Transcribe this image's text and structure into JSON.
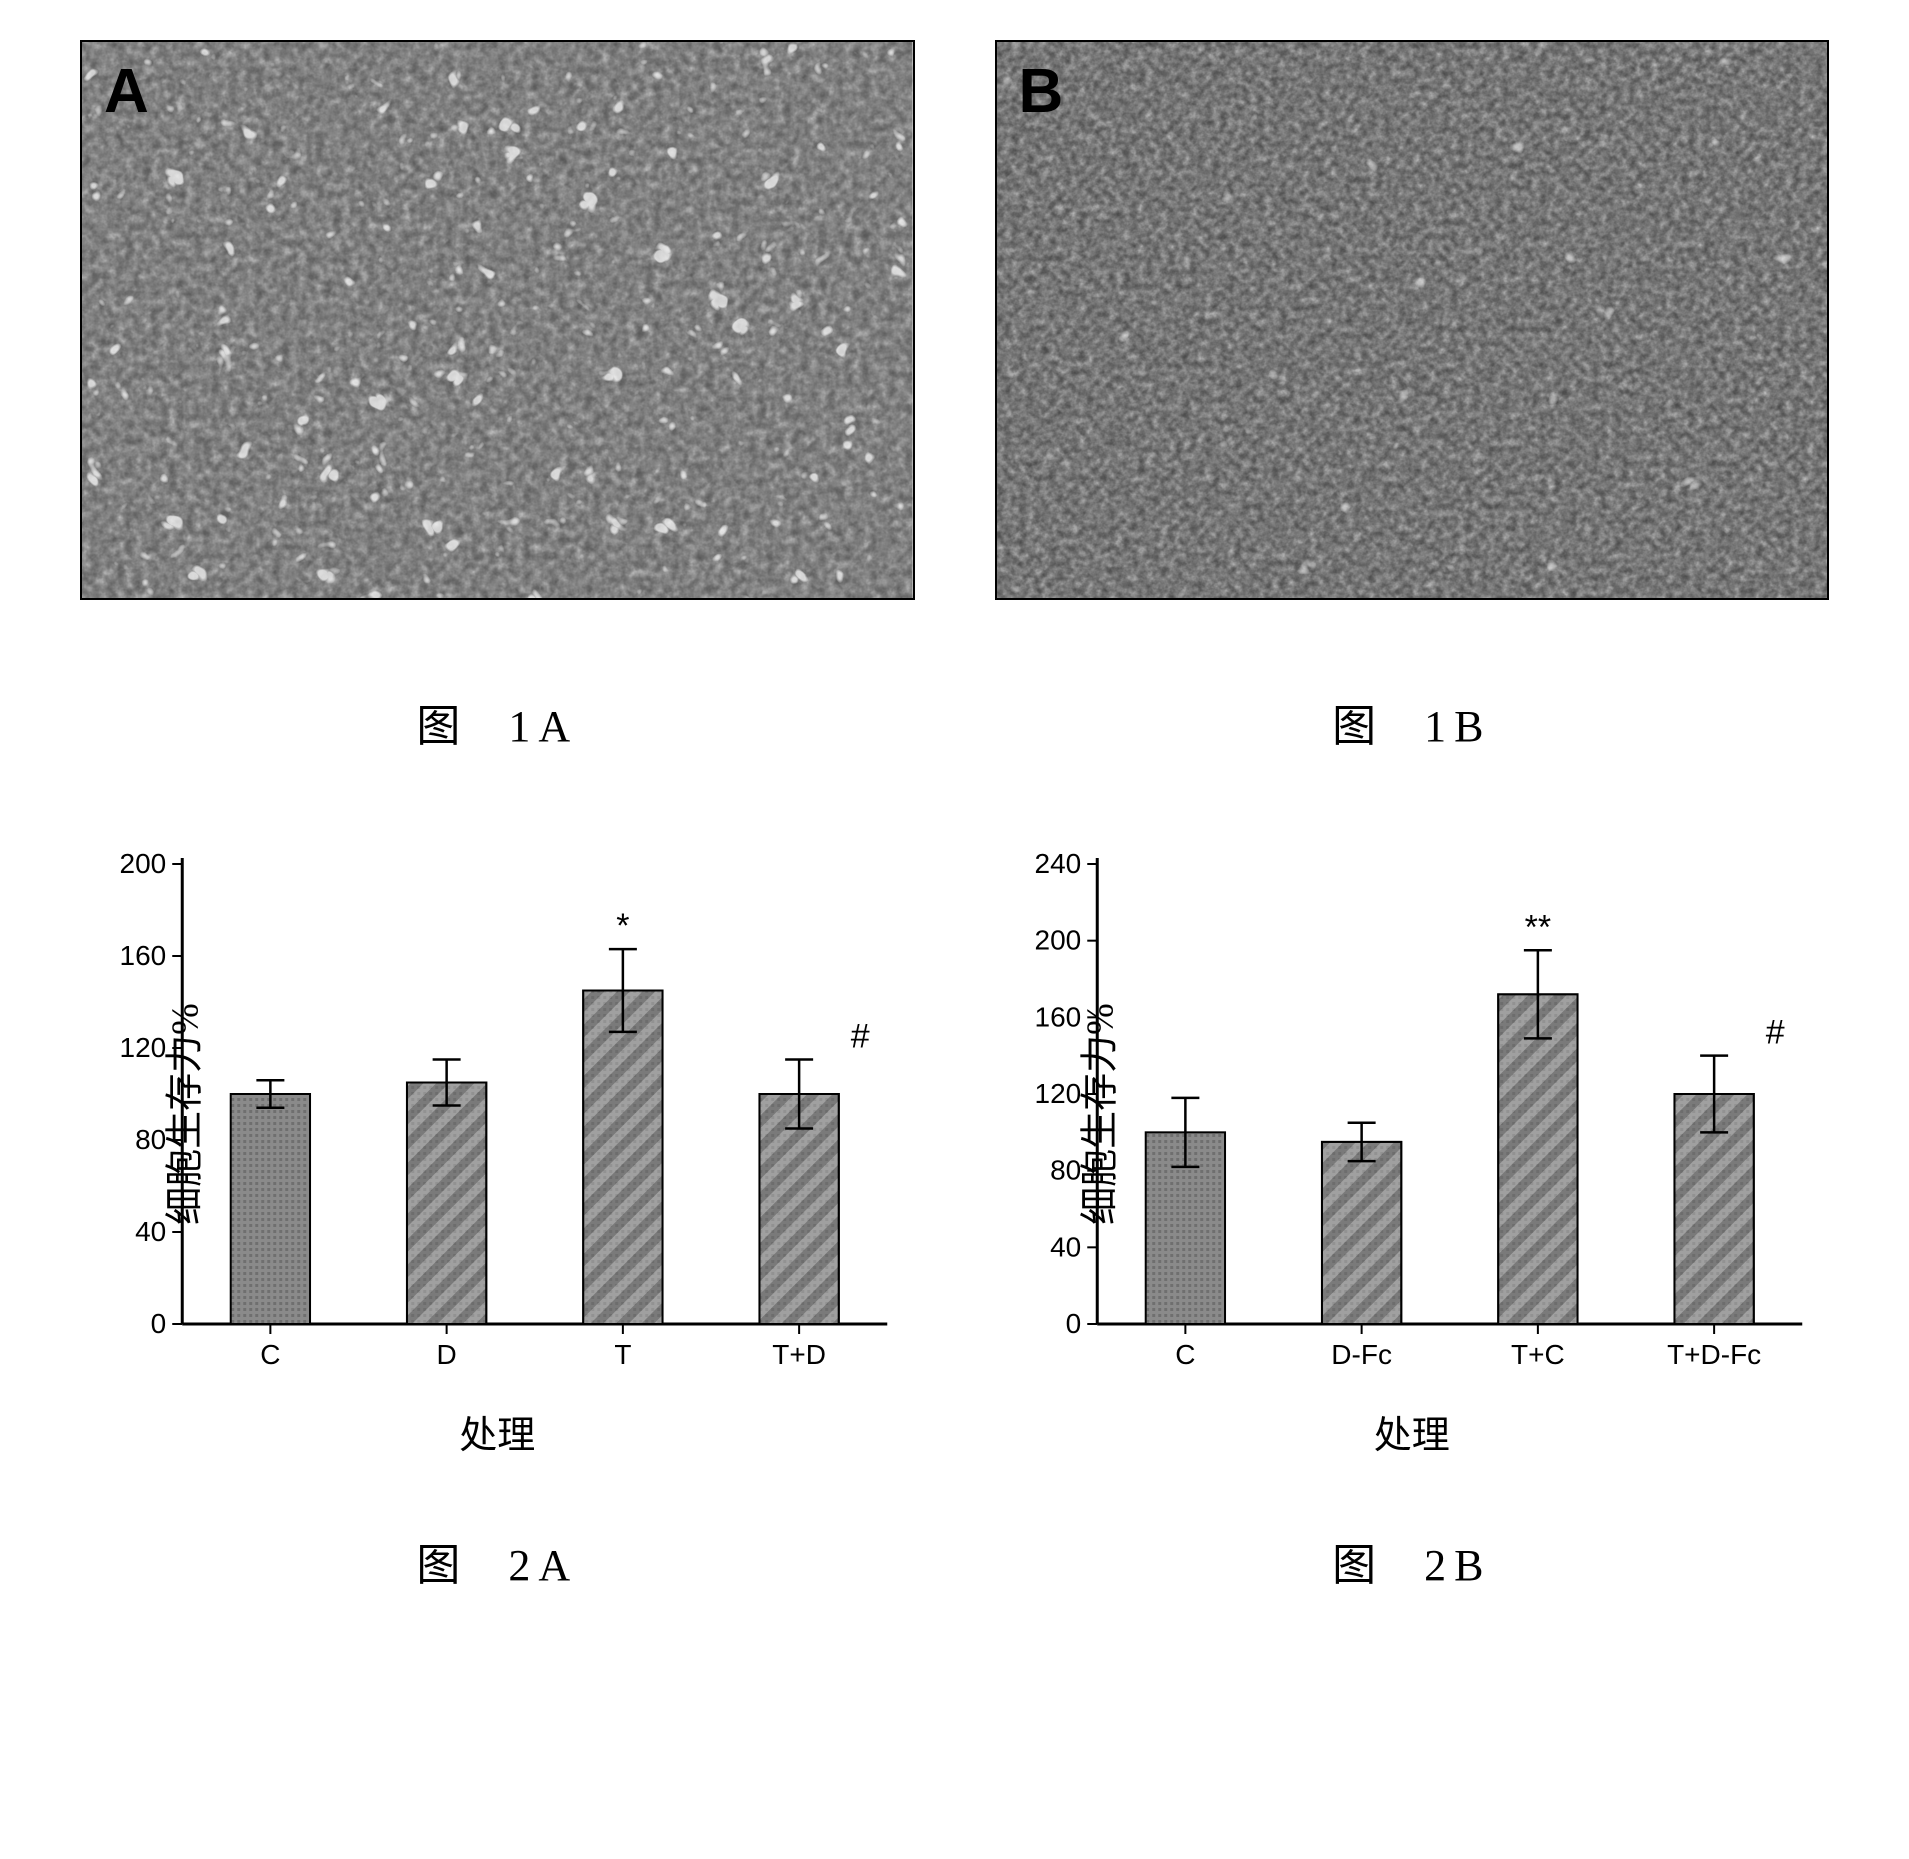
{
  "figure1": {
    "panelA": {
      "letter": "A",
      "caption_prefix": "图",
      "caption_id": "1A",
      "bg": "#5a5a5a"
    },
    "panelB": {
      "letter": "B",
      "caption_prefix": "图",
      "caption_id": "1B",
      "bg": "#4a4a4a"
    }
  },
  "figure2": {
    "panelA": {
      "type": "bar",
      "caption_prefix": "图",
      "caption_id": "2A",
      "ylabel": "细胞生存力%",
      "xlabel": "处理",
      "ylim": [
        0,
        200
      ],
      "ytick_step": 40,
      "categories": [
        "C",
        "D",
        "T",
        "T+D"
      ],
      "values": [
        100,
        105,
        145,
        100
      ],
      "errors": [
        6,
        10,
        18,
        15
      ],
      "annotations": [
        "",
        "",
        "*",
        "#"
      ],
      "bar_fill": "#8a8a8a",
      "hatch_even": "#b5b5b5",
      "hatch_odd": "#6a6a6a",
      "axis_color": "#000000",
      "tick_fontsize": 28,
      "label_fontsize": 38,
      "bar_width": 0.45
    },
    "panelB": {
      "type": "bar",
      "caption_prefix": "图",
      "caption_id": "2B",
      "ylabel": "细胞生存力%",
      "xlabel": "处理",
      "ylim": [
        0,
        240
      ],
      "ytick_step": 40,
      "categories": [
        "C",
        "D-Fc",
        "T+C",
        "T+D-Fc"
      ],
      "values": [
        100,
        95,
        172,
        120
      ],
      "errors": [
        18,
        10,
        23,
        20
      ],
      "annotations": [
        "",
        "",
        "**",
        "#"
      ],
      "bar_fill": "#8a8a8a",
      "hatch_even": "#b5b5b5",
      "hatch_odd": "#6a6a6a",
      "axis_color": "#000000",
      "tick_fontsize": 28,
      "label_fontsize": 38,
      "bar_width": 0.45
    }
  }
}
